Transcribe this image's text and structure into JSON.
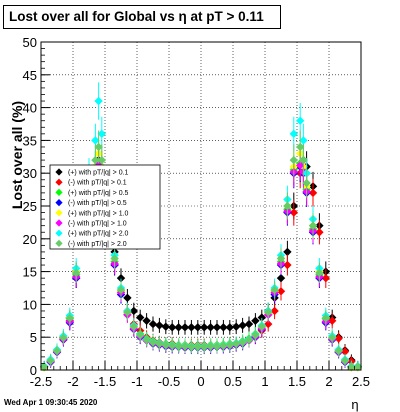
{
  "header": {
    "title": "Lost over all for Global vs   η at pT > 0.11"
  },
  "footer": {
    "timestamp": "Wed Apr  1 09:30:45 2020"
  },
  "chart_data": {
    "type": "scatter",
    "title": "Lost over all for Global vs   η at pT > 0.11",
    "xlabel": "η",
    "ylabel": "Lost over all (%)",
    "xlim": [
      -2.5,
      2.5
    ],
    "ylim": [
      0,
      50
    ],
    "xticks": [
      "-2.5",
      "-2",
      "-1.5",
      "-1",
      "-0.5",
      "0",
      "0.5",
      "1",
      "1.5",
      "2",
      "2.5"
    ],
    "yticks": [
      "0",
      "5",
      "10",
      "15",
      "20",
      "25",
      "30",
      "35",
      "40",
      "45",
      "50"
    ],
    "grid": true,
    "legend_position": "left-middle",
    "x": [
      -2.45,
      -2.35,
      -2.25,
      -2.15,
      -2.05,
      -1.95,
      -1.85,
      -1.75,
      -1.65,
      -1.6,
      -1.55,
      -1.45,
      -1.35,
      -1.25,
      -1.15,
      -1.05,
      -0.95,
      -0.85,
      -0.75,
      -0.65,
      -0.55,
      -0.45,
      -0.35,
      -0.25,
      -0.15,
      -0.05,
      0.05,
      0.15,
      0.25,
      0.35,
      0.45,
      0.55,
      0.65,
      0.75,
      0.85,
      0.95,
      1.05,
      1.15,
      1.25,
      1.35,
      1.45,
      1.55,
      1.6,
      1.65,
      1.75,
      1.85,
      1.95,
      2.05,
      2.15,
      2.25,
      2.35,
      2.45
    ],
    "series": [
      {
        "name": "(+) with pT/|q| > 0.1",
        "color": "#000000",
        "values": [
          0.5,
          1.5,
          3,
          5,
          8,
          15,
          22,
          28,
          31,
          32,
          31,
          25,
          18,
          14,
          11,
          9,
          8,
          7.5,
          7,
          6.8,
          6.6,
          6.5,
          6.5,
          6.5,
          6.5,
          6.5,
          6.5,
          6.5,
          6.5,
          6.5,
          6.5,
          6.6,
          6.8,
          7,
          7.5,
          8,
          9,
          11,
          14,
          18,
          25,
          31,
          32,
          31,
          28,
          22,
          15,
          8,
          5,
          3,
          1.5,
          0.5
        ]
      },
      {
        "name": "(-) with pT/|q| > 0.1",
        "color": "#ff0000",
        "values": [
          0.5,
          1.3,
          2.8,
          4.8,
          7.5,
          14,
          21,
          27,
          30,
          31,
          30,
          24,
          16,
          12,
          9,
          7,
          6,
          5,
          4.5,
          4.2,
          4,
          4,
          3.8,
          3.8,
          3.8,
          3.8,
          3.8,
          3.8,
          3.8,
          3.8,
          4,
          4,
          4.2,
          4.5,
          5,
          6,
          7,
          9,
          12,
          16,
          24,
          30,
          31,
          30,
          27,
          21,
          14,
          7.5,
          4.8,
          2.8,
          1.3,
          0.5
        ]
      },
      {
        "name": "(+) with pT/|q| > 0.5",
        "color": "#00ff00",
        "values": [
          0.4,
          1.4,
          2.9,
          4.9,
          7.8,
          14.5,
          21.5,
          27.5,
          30.5,
          31.5,
          30.5,
          24.5,
          16.5,
          12,
          8.5,
          6.5,
          5.5,
          4.8,
          4.4,
          4.1,
          4,
          3.9,
          3.8,
          3.8,
          3.7,
          3.7,
          3.7,
          3.8,
          3.8,
          3.9,
          4,
          4.1,
          4.4,
          4.8,
          5.5,
          6.5,
          8.5,
          12,
          16.5,
          24.5,
          30.5,
          31.5,
          30.5,
          27.5,
          21.5,
          14.5,
          7.8,
          4.9,
          2.9,
          1.4,
          0.4,
          0.4
        ]
      },
      {
        "name": "(-) with pT/|q| > 0.5",
        "color": "#0000ff",
        "values": [
          0.5,
          1.2,
          2.7,
          4.6,
          7.2,
          14,
          21,
          27,
          30,
          31,
          30,
          24,
          16,
          11.5,
          8.5,
          6.2,
          5,
          4.5,
          4,
          3.8,
          3.6,
          3.5,
          3.5,
          3.4,
          3.4,
          3.4,
          3.4,
          3.4,
          3.5,
          3.5,
          3.6,
          3.8,
          4,
          4.5,
          5,
          6.2,
          8.5,
          11.5,
          16,
          24,
          30,
          31,
          30,
          27,
          21,
          14,
          7.2,
          4.6,
          2.7,
          1.2,
          0.5,
          0.5
        ]
      },
      {
        "name": "(+) with pT/|q| > 1.0",
        "color": "#ffff00",
        "values": [
          0.4,
          1.5,
          3,
          5,
          8,
          15,
          22,
          28,
          31,
          33,
          31,
          25,
          17,
          12,
          8.5,
          6.5,
          5.2,
          4.6,
          4.2,
          4,
          3.9,
          3.8,
          3.7,
          3.7,
          3.6,
          3.6,
          3.6,
          3.7,
          3.7,
          3.8,
          3.9,
          4,
          4.2,
          4.6,
          5.2,
          6.5,
          8.5,
          12,
          17,
          25,
          31,
          33,
          31,
          28,
          22,
          15,
          8,
          5,
          3,
          1.5,
          0.4,
          0.4
        ]
      },
      {
        "name": "(-) with pT/|q| > 1.0",
        "color": "#ff00ff",
        "values": [
          0.5,
          1.3,
          2.8,
          4.7,
          7.4,
          14.2,
          21.2,
          27.2,
          30.2,
          31.2,
          30.2,
          24.2,
          16.2,
          11.8,
          8.4,
          6.3,
          5.1,
          4.5,
          4.1,
          3.9,
          3.7,
          3.6,
          3.6,
          3.5,
          3.5,
          3.5,
          3.5,
          3.5,
          3.6,
          3.6,
          3.7,
          3.9,
          4.1,
          4.5,
          5.1,
          6.3,
          8.4,
          11.8,
          16.2,
          24.2,
          30.2,
          31.2,
          30.2,
          27.2,
          21.2,
          14.2,
          7.4,
          4.7,
          2.8,
          1.3,
          0.5,
          0.5
        ]
      },
      {
        "name": "(+) with pT/|q| > 2.0",
        "color": "#00ffff",
        "values": [
          0.6,
          1.6,
          3.1,
          5.2,
          8.3,
          15.5,
          23,
          30,
          35,
          41,
          36,
          26,
          17.5,
          12.5,
          9,
          6.8,
          5.4,
          4.7,
          4.3,
          4.1,
          3.9,
          3.8,
          3.7,
          3.7,
          3.6,
          3.6,
          3.6,
          3.7,
          3.7,
          3.8,
          3.9,
          4.1,
          4.3,
          4.7,
          5.4,
          6.8,
          9,
          12.5,
          17.5,
          26,
          36,
          38,
          35,
          30,
          23,
          15.5,
          8.3,
          5.2,
          3.1,
          1.6,
          0.6,
          0.6
        ]
      },
      {
        "name": "(-) with pT/|q| > 2.0",
        "color": "#66cc66",
        "values": [
          0.5,
          1.4,
          2.9,
          4.9,
          7.9,
          14.8,
          22,
          28.5,
          32,
          34,
          32,
          25,
          17,
          12.2,
          8.8,
          6.6,
          5.3,
          4.6,
          4.2,
          4,
          3.8,
          3.7,
          3.6,
          3.6,
          3.5,
          3.5,
          3.5,
          3.6,
          3.6,
          3.7,
          3.8,
          4,
          4.2,
          4.6,
          5.3,
          6.6,
          8.8,
          12.2,
          17,
          25,
          32,
          34,
          32,
          28.5,
          22,
          14.8,
          7.9,
          4.9,
          2.9,
          1.4,
          0.5,
          0.5
        ]
      }
    ]
  }
}
